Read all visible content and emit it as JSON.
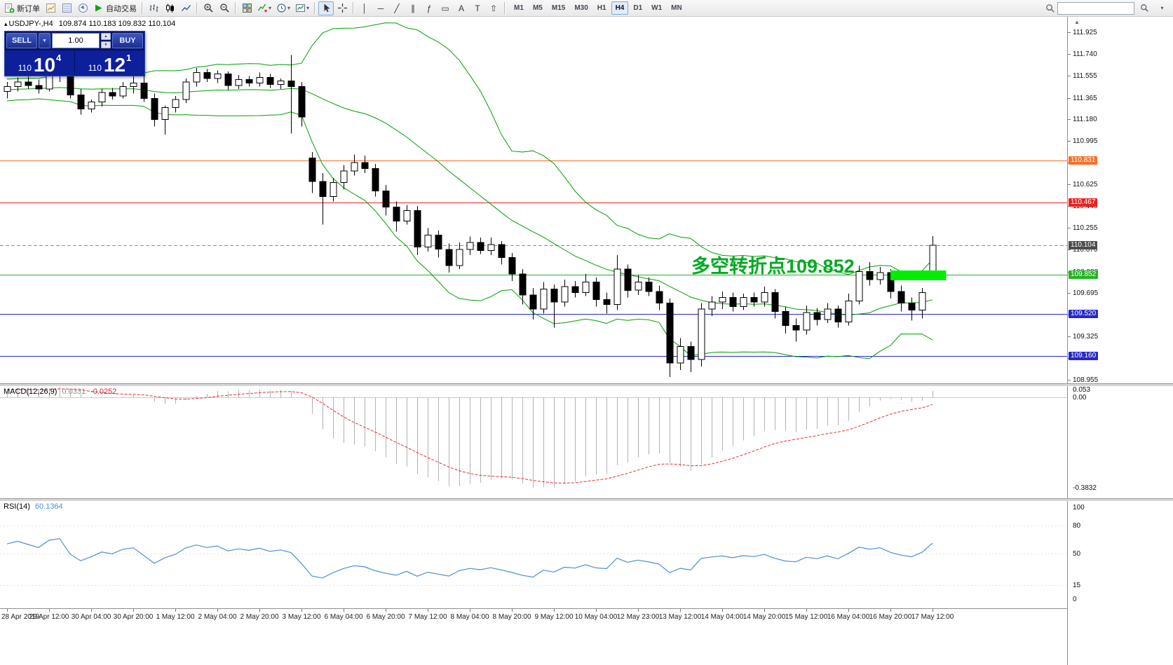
{
  "icons": {
    "chart_marker": "▴",
    "scroll_up": "▲",
    "caret_down": "▾",
    "spinner_up": "▲",
    "spinner_down": "▼",
    "dropdown_down": "▼"
  },
  "toolbar": {
    "new_order_label": "新订单",
    "auto_trading_label": "自动交易",
    "draw_tools": [
      {
        "name": "vertical-line-tool",
        "glyph": "│"
      },
      {
        "name": "horizontal-line-tool",
        "glyph": "─"
      },
      {
        "name": "trendline-tool",
        "glyph": "╱"
      },
      {
        "name": "channel-tool",
        "glyph": "∥"
      },
      {
        "name": "fibonacci-tool",
        "glyph": "ƒ"
      },
      {
        "name": "shapes-tool",
        "glyph": "▭"
      },
      {
        "name": "text-tool",
        "glyph": "A"
      },
      {
        "name": "text-label-tool",
        "glyph": "T"
      },
      {
        "name": "arrows-tool",
        "glyph": "⇧"
      }
    ],
    "timeframes": [
      "M1",
      "M5",
      "M15",
      "M30",
      "H1",
      "H4",
      "D1",
      "W1",
      "MN"
    ],
    "active_timeframe": "H4"
  },
  "chart_header": {
    "symbol": "USDJPY-,H4",
    "ohlc": "109.874 110.183 109.832 110.104"
  },
  "trade_panel": {
    "sell": {
      "caption": "SELL",
      "prefix": "110",
      "big": "10",
      "sup": "4"
    },
    "buy": {
      "caption": "BUY",
      "prefix": "110",
      "big": "12",
      "sup": "1"
    },
    "volume": "1.00"
  },
  "annotations": {
    "pivot_text": "多空转折点109.852",
    "pivot_color": "#00aa22"
  },
  "price_axis": {
    "labels": [
      "111.925",
      "111.740",
      "111.555",
      "111.365",
      "111.180",
      "110.995",
      "110.810",
      "110.625",
      "110.440",
      "110.255",
      "110.070",
      "109.880",
      "109.695",
      "109.510",
      "109.325",
      "109.140",
      "108.955"
    ],
    "tags": [
      {
        "text": "110.831",
        "price": 110.831,
        "color": "#f4702c"
      },
      {
        "text": "110.467",
        "price": 110.467,
        "color": "#ee2020"
      },
      {
        "text": "110.104",
        "price": 110.104,
        "color": "#4d4d4d"
      },
      {
        "text": "109.852",
        "price": 109.852,
        "color": "#24b424"
      },
      {
        "text": "109.520",
        "price": 109.52,
        "color": "#2727cc"
      },
      {
        "text": "109.160",
        "price": 109.16,
        "color": "#2727cc"
      }
    ]
  },
  "indicators": {
    "macd": {
      "label": "MACD(12,26,9)",
      "value_main": "0.0331",
      "value_signal": "-0.0252",
      "axis_labels": [
        "0.053",
        "0.00",
        "-0.3832"
      ],
      "fast": 12,
      "slow": 26,
      "signal": 9
    },
    "rsi": {
      "label": "RSI(14)",
      "value": "60.1364",
      "axis_labels": [
        "100",
        "80",
        "50",
        "15",
        "0"
      ],
      "period": 14
    }
  },
  "time_axis": {
    "label_step": 4,
    "labels": [
      "28 Apr 2019",
      "29 Apr 12:00",
      "30 Apr 04:00",
      "30 Apr 20:00",
      "1 May 12:00",
      "2 May 04:00",
      "2 May 20:00",
      "3 May 12:00",
      "6 May 04:00",
      "6 May 20:00",
      "7 May 12:00",
      "8 May 04:00",
      "8 May 20:00",
      "9 May 12:00",
      "10 May 04:00",
      "12 May 23:00",
      "13 May 12:00",
      "14 May 04:00",
      "14 May 20:00",
      "15 May 12:00",
      "16 May 04:00",
      "16 May 20:00",
      "17 May 12:00"
    ]
  },
  "chart_data": {
    "type": "candlestick",
    "symbol": "USDJPY",
    "timeframe": "H4",
    "ylim": [
      108.955,
      111.925
    ],
    "current_price": 110.104,
    "bollinger": {
      "period": 20,
      "deviation": 2,
      "color": "#00a000"
    },
    "pre_closes": [
      111.3,
      111.36,
      111.42,
      111.38,
      111.45,
      111.5,
      111.47,
      111.42,
      111.38,
      111.35,
      111.4,
      111.44,
      111.48,
      111.52,
      111.49,
      111.45,
      111.41,
      111.38,
      111.42,
      111.44
    ],
    "candles": [
      [
        111.42,
        111.5,
        111.36,
        111.46
      ],
      [
        111.46,
        111.54,
        111.42,
        111.5
      ],
      [
        111.5,
        111.56,
        111.44,
        111.47
      ],
      [
        111.47,
        111.52,
        111.4,
        111.44
      ],
      [
        111.44,
        111.58,
        111.42,
        111.55
      ],
      [
        111.55,
        111.62,
        111.5,
        111.58
      ],
      [
        111.58,
        111.64,
        111.36,
        111.39
      ],
      [
        111.39,
        111.44,
        111.22,
        111.27
      ],
      [
        111.27,
        111.35,
        111.24,
        111.33
      ],
      [
        111.33,
        111.44,
        111.29,
        111.41
      ],
      [
        111.41,
        111.45,
        111.35,
        111.38
      ],
      [
        111.38,
        111.5,
        111.36,
        111.46
      ],
      [
        111.46,
        111.55,
        111.4,
        111.49
      ],
      [
        111.49,
        111.56,
        111.33,
        111.36
      ],
      [
        111.36,
        111.4,
        111.12,
        111.18
      ],
      [
        111.18,
        111.3,
        111.05,
        111.28
      ],
      [
        111.28,
        111.38,
        111.24,
        111.35
      ],
      [
        111.35,
        111.53,
        111.32,
        111.5
      ],
      [
        111.5,
        111.62,
        111.46,
        111.58
      ],
      [
        111.58,
        111.61,
        111.5,
        111.53
      ],
      [
        111.53,
        111.6,
        111.49,
        111.57
      ],
      [
        111.57,
        111.59,
        111.43,
        111.47
      ],
      [
        111.47,
        111.56,
        111.44,
        111.52
      ],
      [
        111.52,
        111.55,
        111.46,
        111.49
      ],
      [
        111.49,
        111.58,
        111.46,
        111.54
      ],
      [
        111.54,
        111.57,
        111.45,
        111.48
      ],
      [
        111.48,
        111.53,
        111.44,
        111.51
      ],
      [
        111.51,
        111.73,
        111.06,
        111.46
      ],
      [
        111.46,
        111.5,
        111.12,
        111.2
      ],
      [
        110.85,
        110.9,
        110.55,
        110.65
      ],
      [
        110.65,
        110.72,
        110.28,
        110.52
      ],
      [
        110.52,
        110.68,
        110.48,
        110.64
      ],
      [
        110.64,
        110.79,
        110.58,
        110.74
      ],
      [
        110.74,
        110.88,
        110.7,
        110.81
      ],
      [
        110.81,
        110.87,
        110.72,
        110.76
      ],
      [
        110.76,
        110.8,
        110.52,
        110.57
      ],
      [
        110.57,
        110.62,
        110.36,
        110.43
      ],
      [
        110.43,
        110.48,
        110.22,
        110.31
      ],
      [
        110.31,
        110.45,
        110.28,
        110.4
      ],
      [
        110.4,
        110.44,
        110.02,
        110.09
      ],
      [
        110.09,
        110.25,
        110.05,
        110.19
      ],
      [
        110.19,
        110.23,
        110.0,
        110.07
      ],
      [
        110.07,
        110.12,
        109.87,
        109.93
      ],
      [
        109.93,
        110.13,
        109.9,
        110.07
      ],
      [
        110.07,
        110.18,
        110.02,
        110.13
      ],
      [
        110.13,
        110.17,
        110.03,
        110.06
      ],
      [
        110.06,
        110.17,
        110.02,
        110.11
      ],
      [
        110.11,
        110.14,
        109.94,
        110.0
      ],
      [
        110.0,
        110.04,
        109.8,
        109.86
      ],
      [
        109.86,
        109.9,
        109.6,
        109.68
      ],
      [
        109.68,
        109.74,
        109.47,
        109.56
      ],
      [
        109.56,
        109.79,
        109.52,
        109.73
      ],
      [
        109.73,
        109.77,
        109.4,
        109.62
      ],
      [
        109.62,
        109.81,
        109.58,
        109.75
      ],
      [
        109.75,
        109.8,
        109.66,
        109.7
      ],
      [
        109.7,
        109.86,
        109.67,
        109.79
      ],
      [
        109.79,
        109.83,
        109.58,
        109.64
      ],
      [
        109.64,
        109.7,
        109.52,
        109.6
      ],
      [
        109.6,
        110.02,
        109.55,
        109.9
      ],
      [
        109.9,
        109.94,
        109.66,
        109.72
      ],
      [
        109.72,
        109.85,
        109.68,
        109.79
      ],
      [
        109.79,
        109.83,
        109.67,
        109.71
      ],
      [
        109.71,
        109.76,
        109.55,
        109.61
      ],
      [
        109.61,
        109.65,
        108.98,
        109.1
      ],
      [
        109.1,
        109.31,
        109.04,
        109.24
      ],
      [
        109.24,
        109.28,
        109.02,
        109.13
      ],
      [
        109.13,
        109.61,
        109.07,
        109.56
      ],
      [
        109.56,
        109.67,
        109.5,
        109.62
      ],
      [
        109.62,
        109.71,
        109.56,
        109.66
      ],
      [
        109.66,
        109.7,
        109.54,
        109.58
      ],
      [
        109.58,
        109.69,
        109.55,
        109.66
      ],
      [
        109.66,
        109.7,
        109.58,
        109.62
      ],
      [
        109.62,
        109.75,
        109.58,
        109.7
      ],
      [
        109.7,
        109.73,
        109.48,
        109.54
      ],
      [
        109.54,
        109.58,
        109.35,
        109.42
      ],
      [
        109.42,
        109.48,
        109.28,
        109.38
      ],
      [
        109.38,
        109.59,
        109.34,
        109.53
      ],
      [
        109.53,
        109.57,
        109.42,
        109.47
      ],
      [
        109.47,
        109.61,
        109.44,
        109.56
      ],
      [
        109.56,
        109.59,
        109.4,
        109.45
      ],
      [
        109.45,
        109.69,
        109.42,
        109.63
      ],
      [
        109.63,
        109.93,
        109.6,
        109.88
      ],
      [
        109.88,
        109.96,
        109.76,
        109.81
      ],
      [
        109.81,
        109.92,
        109.77,
        109.87
      ],
      [
        109.87,
        109.9,
        109.65,
        109.71
      ],
      [
        109.71,
        109.76,
        109.54,
        109.61
      ],
      [
        109.61,
        109.66,
        109.46,
        109.55
      ],
      [
        109.55,
        109.74,
        109.48,
        109.7
      ],
      [
        109.874,
        110.183,
        109.832,
        110.104
      ]
    ],
    "hlines": [
      {
        "price": 110.831,
        "color": "#f4702c",
        "style": "solid"
      },
      {
        "price": 110.467,
        "color": "#ee2020",
        "style": "solid"
      },
      {
        "price": 110.104,
        "color": "#909090",
        "style": "dash"
      },
      {
        "price": 109.852,
        "color": "#24b424",
        "style": "solid"
      },
      {
        "price": 109.52,
        "color": "#2727cc",
        "style": "solid"
      },
      {
        "price": 109.16,
        "color": "#2727cc",
        "style": "solid"
      }
    ],
    "zone": {
      "index_start": 84,
      "index_end": 89.3,
      "price_top": 109.889,
      "price_bottom": 109.806,
      "color": "#00ee00"
    }
  }
}
